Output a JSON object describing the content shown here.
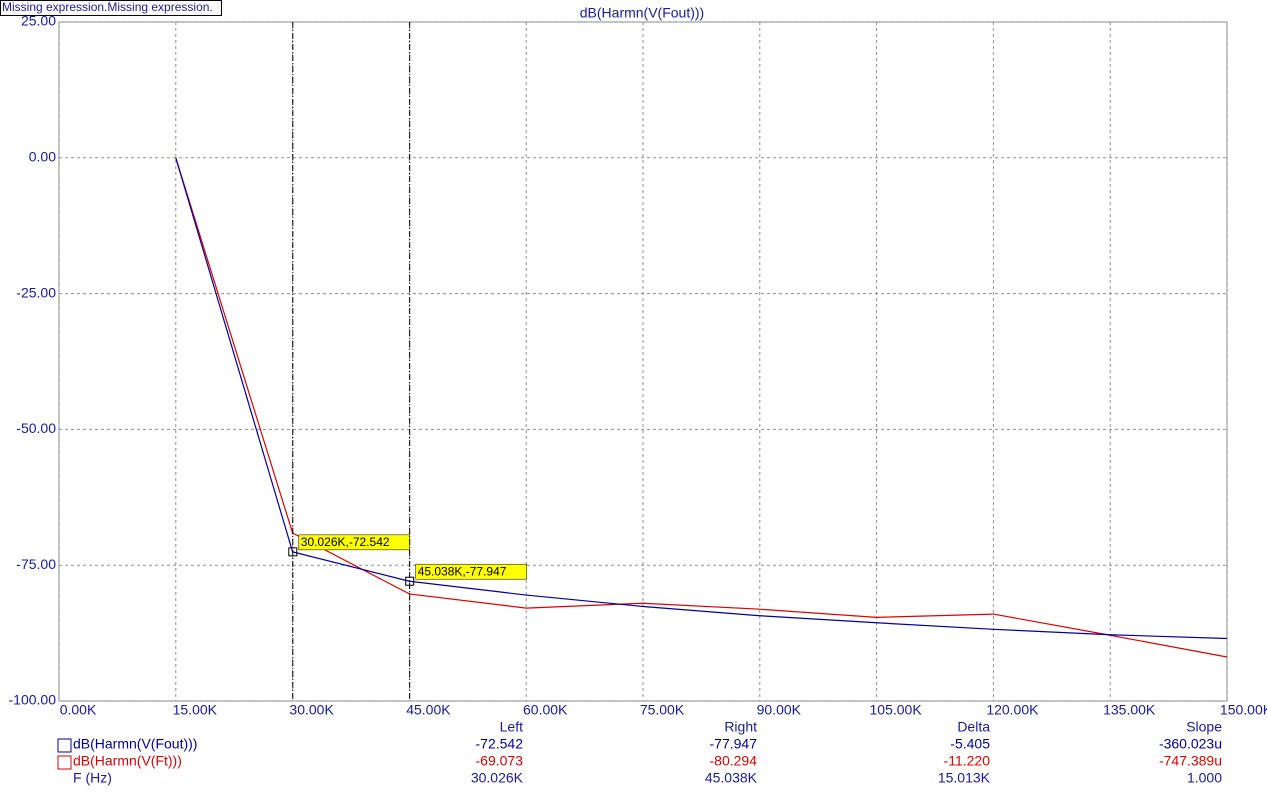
{
  "chart_data": {
    "type": "line",
    "banner": "Missing expression.Missing expression.",
    "title": "dB(Harmn(V(Fout)))",
    "x": [
      15000,
      30000,
      45000,
      60000,
      75000,
      90000,
      105000,
      120000,
      135000,
      150000
    ],
    "series": [
      {
        "name": "dB(Harmn(V(Fout)))",
        "color": "#0000a0",
        "values": [
          0,
          -72.54,
          -77.95,
          -80.5,
          -82.6,
          -84.3,
          -85.6,
          -86.8,
          -87.8,
          -88.5
        ]
      },
      {
        "name": "dB(Harmn(V(Ft)))",
        "color": "#e00000",
        "values": [
          0,
          -69.07,
          -80.29,
          -82.9,
          -82.0,
          -83.1,
          -84.6,
          -84.0,
          -87.9,
          -91.9
        ]
      }
    ],
    "xlim": [
      0,
      150000
    ],
    "ylim": [
      -100,
      25
    ],
    "xticks": [
      {
        "value": 0,
        "label": "0.00K"
      },
      {
        "value": 15000,
        "label": "15.00K"
      },
      {
        "value": 30000,
        "label": "30.00K"
      },
      {
        "value": 45000,
        "label": "45.00K"
      },
      {
        "value": 60000,
        "label": "60.00K"
      },
      {
        "value": 75000,
        "label": "75.00K"
      },
      {
        "value": 90000,
        "label": "90.00K"
      },
      {
        "value": 105000,
        "label": "105.00K"
      },
      {
        "value": 120000,
        "label": "120.00K"
      },
      {
        "value": 135000,
        "label": "135.00K"
      },
      {
        "value": 150000,
        "label": "150.00K"
      }
    ],
    "yticks": [
      {
        "value": 25,
        "label": "25.00"
      },
      {
        "value": 0,
        "label": "0.00"
      },
      {
        "value": -25,
        "label": "-25.00"
      },
      {
        "value": -50,
        "label": "-50.00"
      },
      {
        "value": -75,
        "label": "-75.00"
      },
      {
        "value": -100,
        "label": "-100.00"
      }
    ],
    "grid": true,
    "cursors": [
      {
        "x": 30026,
        "y": -72.542,
        "label": "30.026K,-72.542"
      },
      {
        "x": 45038,
        "y": -77.947,
        "label": "45.038K,-77.947"
      }
    ],
    "readout": {
      "columns": [
        "Left",
        "Right",
        "Delta",
        "Slope"
      ],
      "rows": [
        {
          "name": "dB(Harmn(V(Fout)))",
          "cells": [
            "-72.542",
            "-77.947",
            "-5.405",
            "-360.023u"
          ]
        },
        {
          "name": "dB(Harmn(V(Ft)))",
          "cells": [
            "-69.073",
            "-80.294",
            "-11.220",
            "-747.389u"
          ]
        },
        {
          "name": "F (Hz)",
          "cells": [
            "30.026K",
            "45.038K",
            "15.013K",
            "1.000"
          ]
        }
      ]
    }
  }
}
